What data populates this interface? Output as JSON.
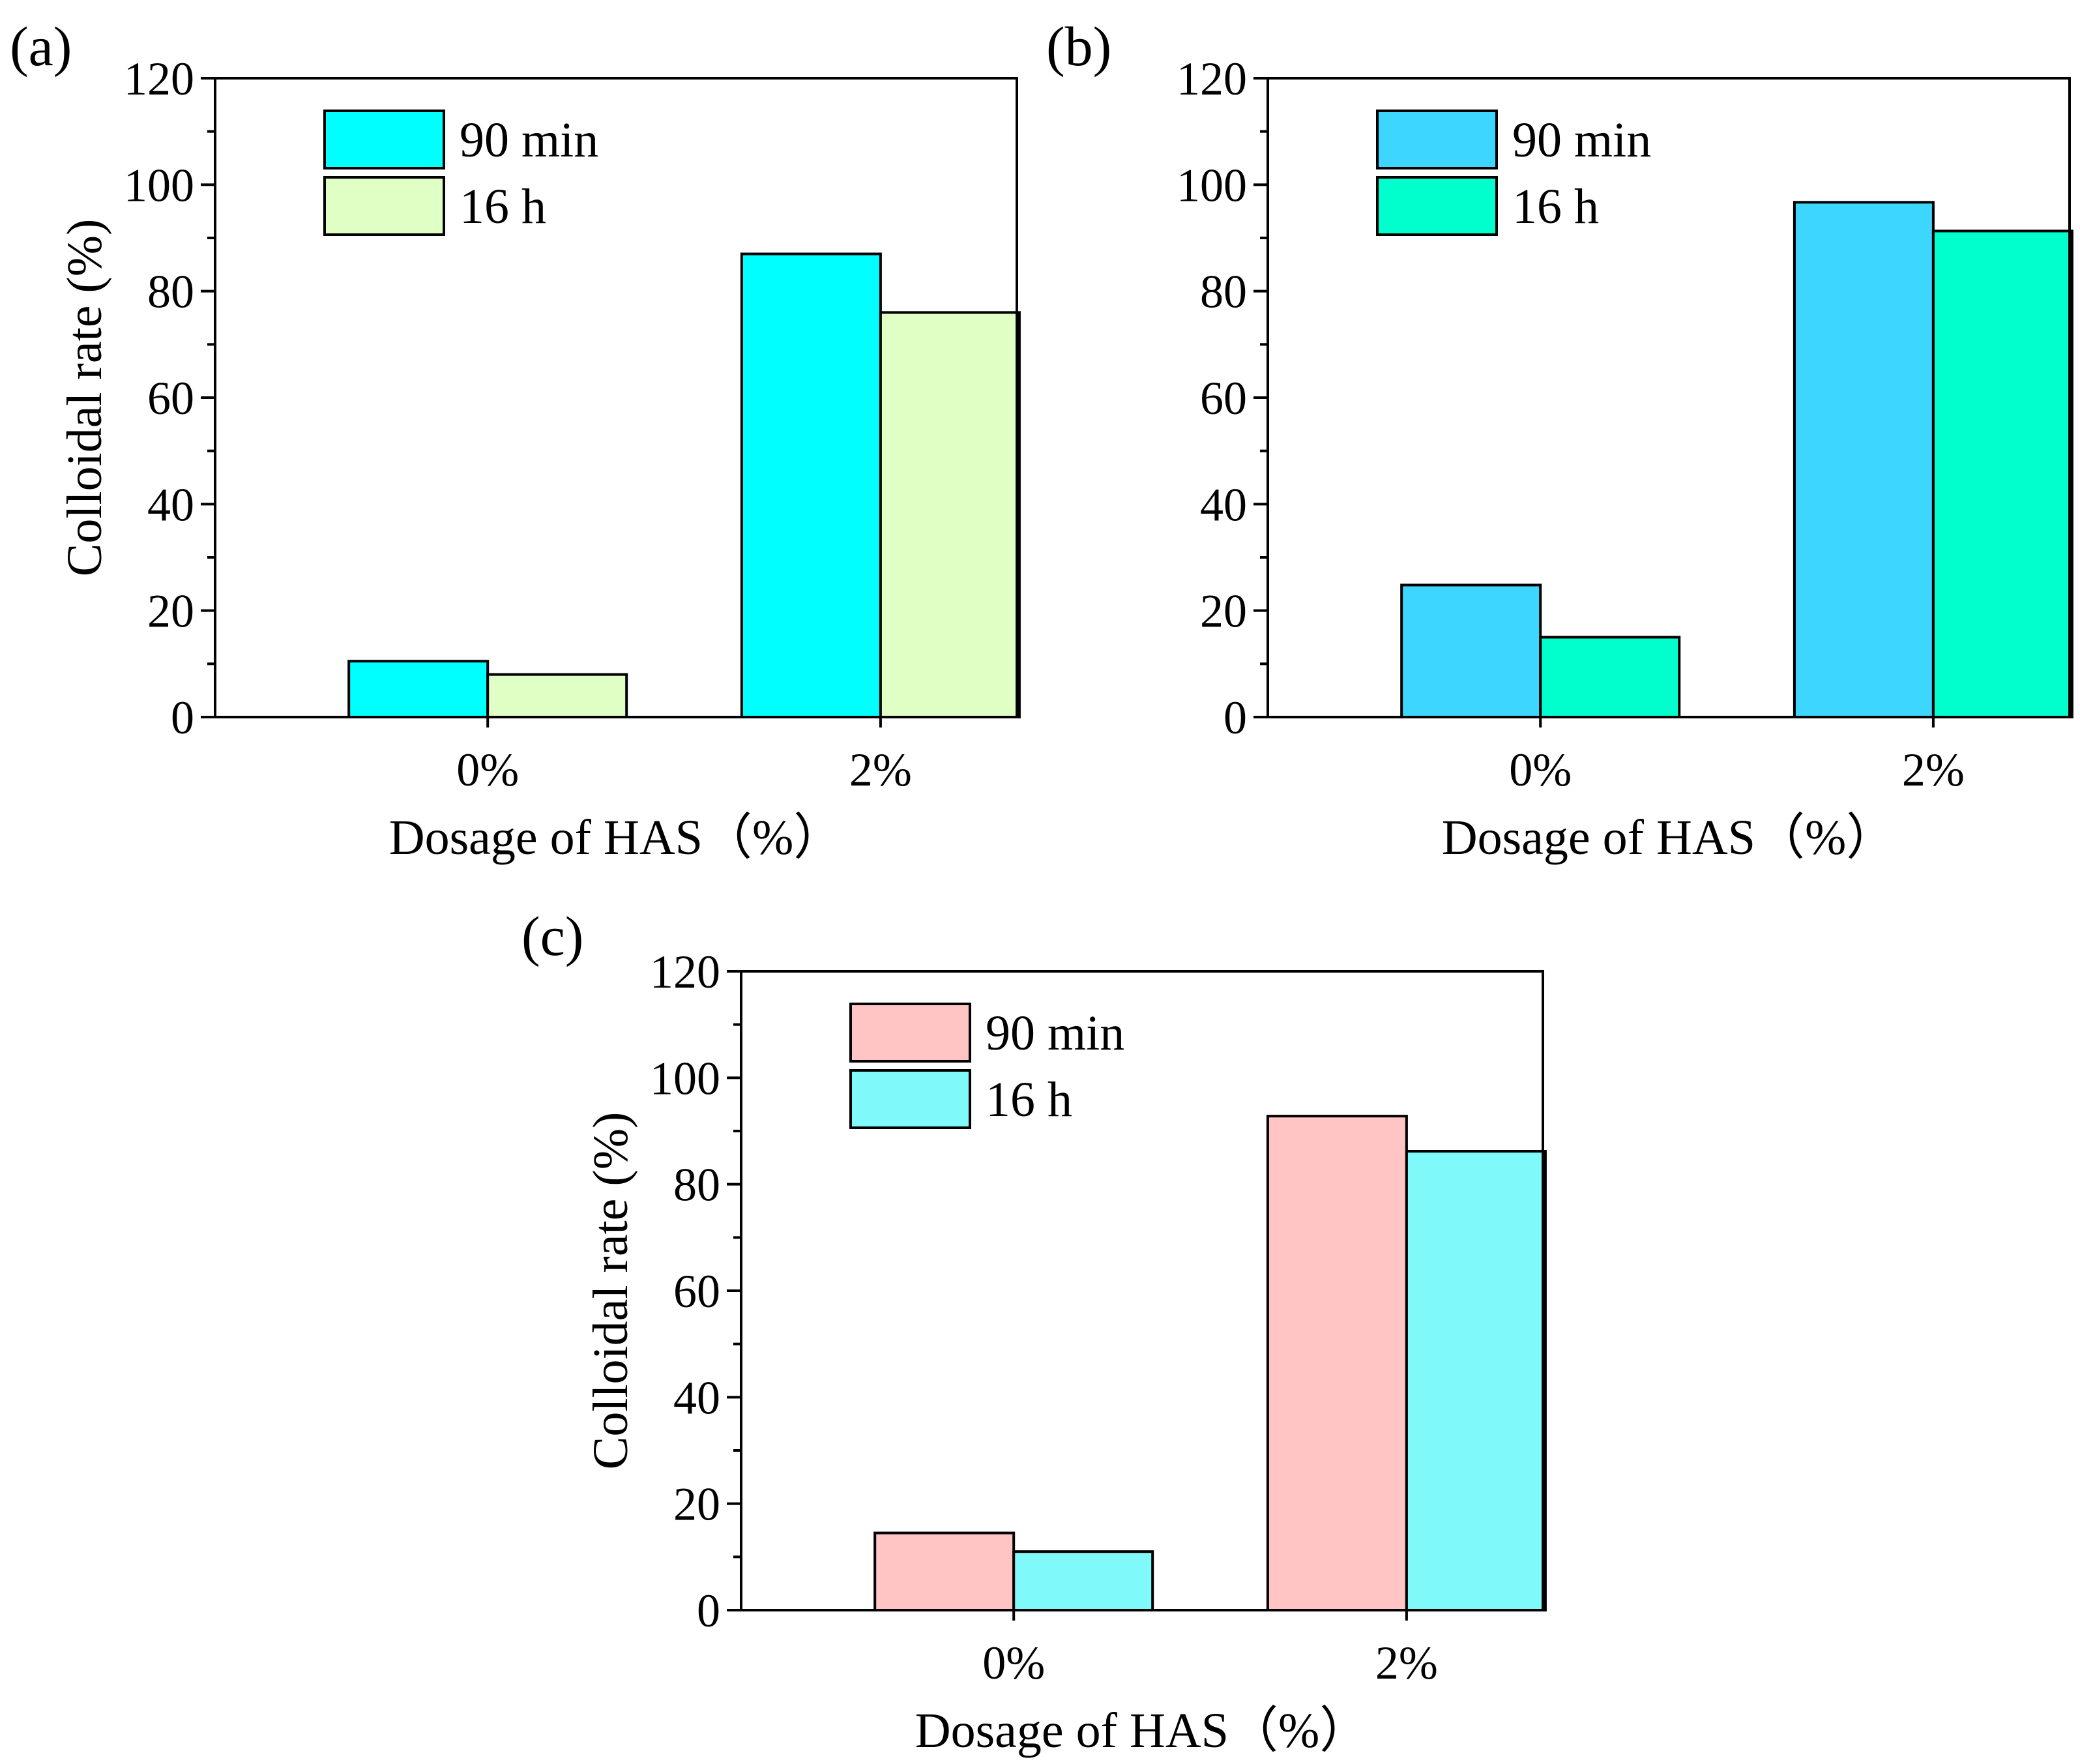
{
  "chart_data": [
    {
      "type": "bar",
      "panel_label": "(a)",
      "categories": [
        "0%",
        "2%"
      ],
      "series": [
        {
          "name": "90 min",
          "values": [
            10.5,
            87
          ],
          "color": "#00FFFF"
        },
        {
          "name": "16 h",
          "values": [
            8,
            76
          ],
          "color": "#E0FFC4"
        }
      ],
      "xlabel": "Dosage of HAS（%）",
      "ylabel": "Colloidal rate (%)",
      "ylim": [
        0,
        120
      ],
      "yticks": [
        "0",
        "20",
        "40",
        "60",
        "80",
        "100",
        "120"
      ],
      "legend": "top-left",
      "grid": false
    },
    {
      "type": "bar",
      "panel_label": "(b)",
      "categories": [
        "0%",
        "2%"
      ],
      "series": [
        {
          "name": "90 min",
          "values": [
            24.8,
            96.7
          ],
          "color": "#3DD6FF"
        },
        {
          "name": "16 h",
          "values": [
            15,
            91.3
          ],
          "color": "#00FFCC"
        }
      ],
      "xlabel": "Dosage of HAS（%）",
      "ylabel": "",
      "ylim": [
        0,
        120
      ],
      "yticks": [
        "0",
        "20",
        "40",
        "60",
        "80",
        "100",
        "120"
      ],
      "legend": "top-left",
      "grid": false
    },
    {
      "type": "bar",
      "panel_label": "(c)",
      "categories": [
        "0%",
        "2%"
      ],
      "series": [
        {
          "name": "90 min",
          "values": [
            14.5,
            92.8
          ],
          "color": "#FFC4C4"
        },
        {
          "name": "16 h",
          "values": [
            11,
            86.2
          ],
          "color": "#7FF9F9"
        }
      ],
      "xlabel": "Dosage of HAS（%）",
      "ylabel": "Colloidal rate (%)",
      "ylim": [
        0,
        120
      ],
      "yticks": [
        "0",
        "20",
        "40",
        "60",
        "80",
        "100",
        "120"
      ],
      "legend": "top-left",
      "grid": false
    }
  ]
}
